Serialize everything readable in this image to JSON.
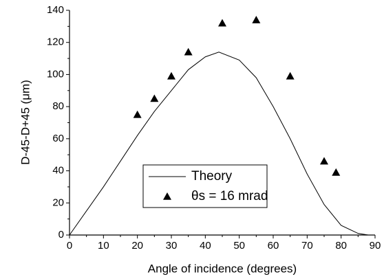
{
  "chart_data": {
    "type": "line",
    "xlabel": "Angle of incidence (degrees)",
    "ylabel": "D-45-D+45 (μm)",
    "xlim": [
      0,
      90
    ],
    "xticks": [
      0,
      10,
      20,
      30,
      40,
      50,
      60,
      70,
      80,
      90
    ],
    "ylim": [
      0,
      140
    ],
    "yticks": [
      0,
      20,
      40,
      60,
      80,
      100,
      120,
      140
    ],
    "legend": "bottom",
    "series": [
      {
        "name": "Theory",
        "type": "line",
        "color": "#000000",
        "x": [
          0,
          5,
          10,
          15,
          20,
          25,
          30,
          35,
          40,
          44,
          50,
          55,
          60,
          65,
          70,
          75,
          80,
          85,
          88
        ],
        "values": [
          0,
          15,
          30,
          46,
          62,
          77,
          90,
          103,
          111,
          114,
          109,
          98,
          80,
          60,
          38,
          19,
          6,
          1,
          0
        ]
      },
      {
        "name": "θs = 16 mrad",
        "type": "scatter",
        "color": "#000000",
        "x": [
          20,
          25,
          30,
          35,
          45,
          55,
          65,
          75,
          78.5
        ],
        "values": [
          75,
          85,
          99,
          114,
          132,
          134,
          99,
          46,
          39
        ]
      }
    ]
  }
}
